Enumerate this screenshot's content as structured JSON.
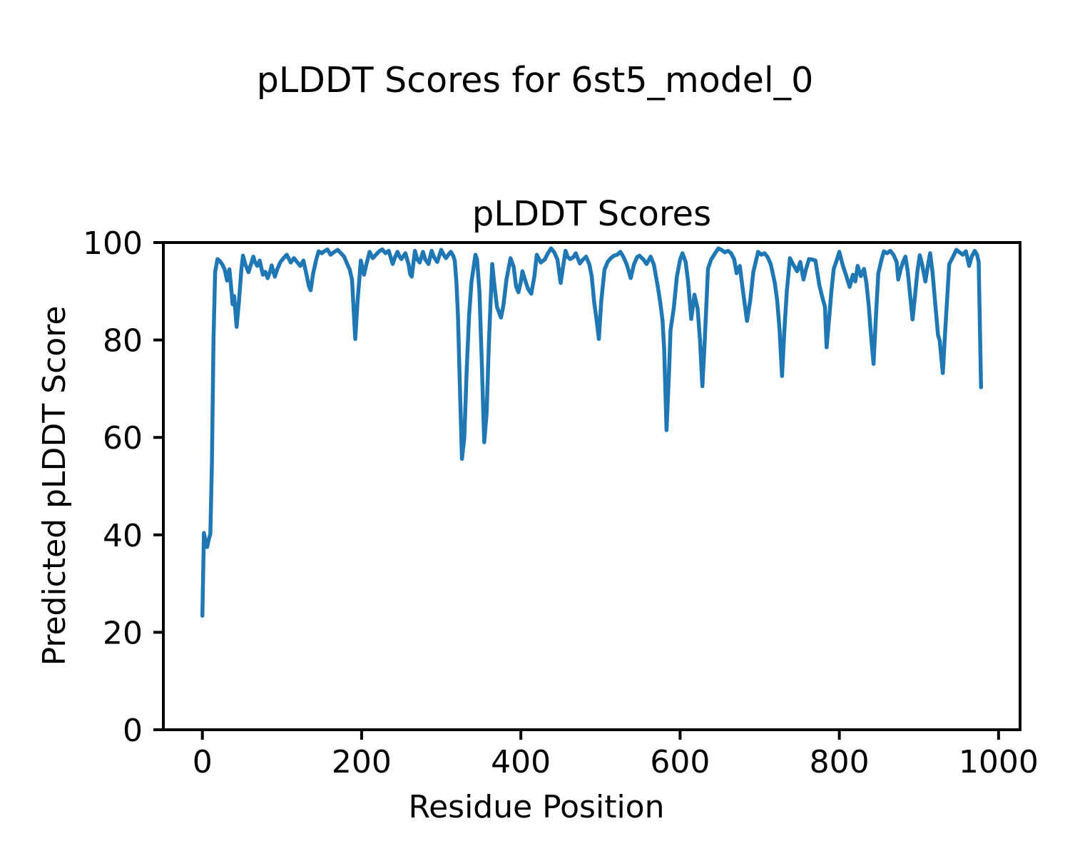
{
  "figure": {
    "suptitle": "pLDDT Scores for 6st5_model_0"
  },
  "chart_data": {
    "type": "line",
    "title": "pLDDT Scores",
    "xlabel": "Residue Position",
    "ylabel": "Predicted pLDDT Score",
    "xlim": [
      -49,
      1027
    ],
    "ylim": [
      0,
      100
    ],
    "xticks": [
      0,
      200,
      400,
      600,
      800,
      1000
    ],
    "yticks": [
      0,
      20,
      40,
      60,
      80,
      100
    ],
    "grid": false,
    "legend": null,
    "line_color": "#1f77b4",
    "axis_color": "#000000",
    "series": [
      {
        "name": "pLDDT",
        "points": [
          [
            0,
            23.4
          ],
          [
            1,
            32
          ],
          [
            2,
            40.4
          ],
          [
            4,
            38.5
          ],
          [
            6,
            37.5
          ],
          [
            8,
            39
          ],
          [
            10,
            40.2
          ],
          [
            12,
            55
          ],
          [
            14,
            80
          ],
          [
            16,
            94
          ],
          [
            19,
            96.6
          ],
          [
            22,
            96.2
          ],
          [
            25,
            95.5
          ],
          [
            28,
            94.5
          ],
          [
            31,
            92.2
          ],
          [
            34,
            94.5
          ],
          [
            36,
            91
          ],
          [
            38,
            87.3
          ],
          [
            40,
            89
          ],
          [
            43,
            82.7
          ],
          [
            46,
            88
          ],
          [
            49,
            94.5
          ],
          [
            51,
            97.3
          ],
          [
            54,
            95.5
          ],
          [
            58,
            93.9
          ],
          [
            61,
            95.5
          ],
          [
            64,
            97.1
          ],
          [
            66,
            96
          ],
          [
            69,
            95.2
          ],
          [
            72,
            96.3
          ],
          [
            76,
            93.4
          ],
          [
            79,
            94
          ],
          [
            82,
            92.7
          ],
          [
            85,
            94
          ],
          [
            87,
            95.3
          ],
          [
            91,
            93
          ],
          [
            94,
            94.5
          ],
          [
            98,
            96
          ],
          [
            102,
            96.8
          ],
          [
            106,
            97.5
          ],
          [
            111,
            95.9
          ],
          [
            115,
            96.8
          ],
          [
            119,
            96
          ],
          [
            123,
            95.2
          ],
          [
            127,
            96.3
          ],
          [
            130,
            94
          ],
          [
            134,
            90.9
          ],
          [
            136,
            90.2
          ],
          [
            139,
            93.5
          ],
          [
            143,
            96.5
          ],
          [
            146,
            98.2
          ],
          [
            150,
            97.8
          ],
          [
            153,
            98.2
          ],
          [
            157,
            98.6
          ],
          [
            161,
            97.5
          ],
          [
            165,
            98
          ],
          [
            170,
            98.5
          ],
          [
            174,
            97.8
          ],
          [
            178,
            97.1
          ],
          [
            182,
            95.6
          ],
          [
            185,
            94.5
          ],
          [
            188,
            92.4
          ],
          [
            192,
            80.2
          ],
          [
            195,
            88
          ],
          [
            199,
            96.3
          ],
          [
            203,
            93.4
          ],
          [
            206,
            95.5
          ],
          [
            210,
            98.1
          ],
          [
            214,
            96.8
          ],
          [
            218,
            97.5
          ],
          [
            222,
            98.2
          ],
          [
            226,
            98.6
          ],
          [
            230,
            97.8
          ],
          [
            234,
            98.3
          ],
          [
            239,
            95.6
          ],
          [
            242,
            97
          ],
          [
            245,
            98.1
          ],
          [
            248,
            97
          ],
          [
            250,
            96.6
          ],
          [
            255,
            97.8
          ],
          [
            259,
            95.5
          ],
          [
            261,
            93.5
          ],
          [
            263,
            93
          ],
          [
            267,
            98.3
          ],
          [
            270,
            96.5
          ],
          [
            273,
            95.9
          ],
          [
            277,
            98.1
          ],
          [
            280,
            96.5
          ],
          [
            284,
            95.6
          ],
          [
            288,
            98.3
          ],
          [
            291,
            97
          ],
          [
            295,
            96
          ],
          [
            300,
            98.5
          ],
          [
            303,
            97.5
          ],
          [
            306,
            96.8
          ],
          [
            309,
            97.5
          ],
          [
            312,
            98.1
          ],
          [
            315,
            97.3
          ],
          [
            317,
            96.3
          ],
          [
            319,
            92
          ],
          [
            321,
            85
          ],
          [
            323,
            73
          ],
          [
            326,
            55.6
          ],
          [
            329,
            60
          ],
          [
            332,
            74
          ],
          [
            335,
            85
          ],
          [
            338,
            92
          ],
          [
            343,
            97.5
          ],
          [
            345,
            96.5
          ],
          [
            348,
            90
          ],
          [
            351,
            75
          ],
          [
            354,
            59
          ],
          [
            357,
            65
          ],
          [
            360,
            80
          ],
          [
            364,
            95.6
          ],
          [
            367,
            91
          ],
          [
            370,
            86.8
          ],
          [
            375,
            84.6
          ],
          [
            378,
            87
          ],
          [
            382,
            92.5
          ],
          [
            387,
            96.8
          ],
          [
            391,
            95
          ],
          [
            394,
            91
          ],
          [
            397,
            89.8
          ],
          [
            400,
            92
          ],
          [
            402,
            94.1
          ],
          [
            405,
            92.5
          ],
          [
            409,
            90.5
          ],
          [
            413,
            89.5
          ],
          [
            417,
            93
          ],
          [
            420,
            97.5
          ],
          [
            425,
            95.9
          ],
          [
            430,
            96.5
          ],
          [
            434,
            97.8
          ],
          [
            438,
            98.8
          ],
          [
            442,
            98
          ],
          [
            446,
            96.5
          ],
          [
            450,
            91.7
          ],
          [
            456,
            98.3
          ],
          [
            459,
            97
          ],
          [
            462,
            96.6
          ],
          [
            466,
            97
          ],
          [
            469,
            97.8
          ],
          [
            474,
            95.7
          ],
          [
            478,
            96.5
          ],
          [
            482,
            97.1
          ],
          [
            486,
            95.5
          ],
          [
            489,
            93.1
          ],
          [
            492,
            88
          ],
          [
            496,
            83
          ],
          [
            498,
            80.2
          ],
          [
            501,
            88
          ],
          [
            505,
            94.4
          ],
          [
            509,
            96
          ],
          [
            513,
            96.8
          ],
          [
            517,
            97.3
          ],
          [
            521,
            97.5
          ],
          [
            525,
            98.1
          ],
          [
            529,
            97
          ],
          [
            533,
            95.5
          ],
          [
            538,
            92.7
          ],
          [
            542,
            95.5
          ],
          [
            546,
            97
          ],
          [
            549,
            97.3
          ],
          [
            554,
            96.5
          ],
          [
            558,
            95.6
          ],
          [
            563,
            97.1
          ],
          [
            567,
            95.5
          ],
          [
            572,
            91
          ],
          [
            575,
            87.8
          ],
          [
            578,
            84
          ],
          [
            580,
            78
          ],
          [
            583,
            61.5
          ],
          [
            586,
            73
          ],
          [
            588,
            82
          ],
          [
            592,
            86.5
          ],
          [
            596,
            93
          ],
          [
            600,
            96.5
          ],
          [
            603,
            97.8
          ],
          [
            607,
            96
          ],
          [
            610,
            92
          ],
          [
            614,
            84.3
          ],
          [
            618,
            89.3
          ],
          [
            622,
            86.4
          ],
          [
            625,
            80
          ],
          [
            628,
            70.5
          ],
          [
            631,
            80
          ],
          [
            635,
            94.6
          ],
          [
            639,
            96.5
          ],
          [
            644,
            97.8
          ],
          [
            648,
            98.8
          ],
          [
            652,
            98.5
          ],
          [
            656,
            98
          ],
          [
            660,
            98.3
          ],
          [
            664,
            97.8
          ],
          [
            668,
            96.5
          ],
          [
            671,
            93.7
          ],
          [
            675,
            95.2
          ],
          [
            679,
            90
          ],
          [
            684,
            83.9
          ],
          [
            688,
            88
          ],
          [
            692,
            94
          ],
          [
            698,
            98.1
          ],
          [
            702,
            97.5
          ],
          [
            706,
            97.8
          ],
          [
            710,
            97
          ],
          [
            714,
            95.5
          ],
          [
            719,
            91.7
          ],
          [
            722,
            88
          ],
          [
            725,
            82
          ],
          [
            728,
            72.6
          ],
          [
            731,
            82
          ],
          [
            734,
            90
          ],
          [
            738,
            96.8
          ],
          [
            742,
            95.5
          ],
          [
            747,
            94.1
          ],
          [
            751,
            96
          ],
          [
            755,
            92.4
          ],
          [
            758,
            94.5
          ],
          [
            762,
            96.6
          ],
          [
            766,
            96.5
          ],
          [
            770,
            96.3
          ],
          [
            775,
            91.2
          ],
          [
            779,
            88.5
          ],
          [
            782,
            86.8
          ],
          [
            784,
            78.5
          ],
          [
            787,
            84
          ],
          [
            790,
            90
          ],
          [
            793,
            94.6
          ],
          [
            797,
            96.5
          ],
          [
            800,
            98.1
          ],
          [
            804,
            95.5
          ],
          [
            808,
            93.5
          ],
          [
            813,
            90.9
          ],
          [
            817,
            93.4
          ],
          [
            820,
            92
          ],
          [
            823,
            95.2
          ],
          [
            827,
            93.1
          ],
          [
            831,
            94.6
          ],
          [
            834,
            91.7
          ],
          [
            837,
            87
          ],
          [
            840,
            80.5
          ],
          [
            843,
            75.1
          ],
          [
            846,
            85
          ],
          [
            849,
            93.7
          ],
          [
            853,
            96.5
          ],
          [
            856,
            98.2
          ],
          [
            860,
            97.8
          ],
          [
            864,
            98.3
          ],
          [
            868,
            97.5
          ],
          [
            872,
            96
          ],
          [
            874,
            92.4
          ],
          [
            877,
            94.5
          ],
          [
            880,
            96
          ],
          [
            883,
            97.1
          ],
          [
            886,
            94
          ],
          [
            889,
            89
          ],
          [
            892,
            84.2
          ],
          [
            895,
            89
          ],
          [
            898,
            94
          ],
          [
            901,
            97.4
          ],
          [
            904,
            95.5
          ],
          [
            908,
            92
          ],
          [
            911,
            95
          ],
          [
            914,
            97.8
          ],
          [
            917,
            94
          ],
          [
            921,
            86.4
          ],
          [
            924,
            81
          ],
          [
            926,
            79.9
          ],
          [
            930,
            73.2
          ],
          [
            933,
            82
          ],
          [
            936,
            90
          ],
          [
            938,
            95.6
          ],
          [
            941,
            96.5
          ],
          [
            944,
            97.5
          ],
          [
            947,
            98.5
          ],
          [
            951,
            98
          ],
          [
            955,
            97.5
          ],
          [
            959,
            98.2
          ],
          [
            963,
            95.2
          ],
          [
            966,
            97
          ],
          [
            970,
            98.3
          ],
          [
            973,
            97.5
          ],
          [
            975,
            96
          ],
          [
            978,
            70.3
          ]
        ]
      }
    ]
  }
}
